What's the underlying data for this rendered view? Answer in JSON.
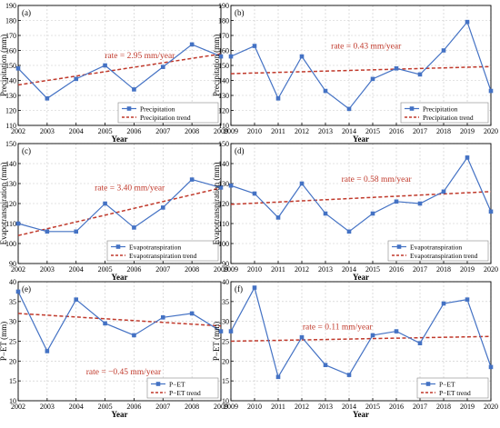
{
  "chart_data": [
    {
      "type": "line",
      "panel_label": "(a)",
      "xlabel": "Year",
      "ylabel": "Precipitation (mm)",
      "xlim": [
        2002,
        2009
      ],
      "ylim": [
        110,
        190
      ],
      "xticks": [
        "2002",
        "2003",
        "2004",
        "2005",
        "2006",
        "2007",
        "2008",
        "2009"
      ],
      "yticks": [
        "110",
        "120",
        "130",
        "140",
        "150",
        "160",
        "170",
        "180",
        "190"
      ],
      "x": [
        2002,
        2003,
        2004,
        2005,
        2006,
        2007,
        2008,
        2009
      ],
      "series": [
        {
          "name": "Precipitation",
          "style": "solid-square",
          "values": [
            148,
            128,
            141,
            150,
            134,
            149,
            164,
            156
          ]
        },
        {
          "name": "Precipitation trend",
          "style": "dashed",
          "values": [
            137,
            139.95,
            142.9,
            145.85,
            148.8,
            151.75,
            154.7,
            157.65
          ]
        }
      ],
      "annotation": "rate = 2.95 mm/year",
      "legend_position": "bottom-right",
      "grid": true
    },
    {
      "type": "line",
      "panel_label": "(b)",
      "xlabel": "Year",
      "ylabel": "Precipitation (mm)",
      "xlim": [
        2009,
        2020
      ],
      "ylim": [
        110,
        190
      ],
      "xticks": [
        "2009",
        "2010",
        "2011",
        "2012",
        "2013",
        "2014",
        "2015",
        "2016",
        "2017",
        "2018",
        "2019",
        "2020"
      ],
      "yticks": [
        "110",
        "120",
        "130",
        "140",
        "150",
        "160",
        "170",
        "180",
        "190"
      ],
      "x": [
        2009,
        2010,
        2011,
        2012,
        2013,
        2014,
        2015,
        2016,
        2017,
        2018,
        2019,
        2020
      ],
      "series": [
        {
          "name": "Precipitation",
          "style": "solid-square",
          "values": [
            156,
            163,
            128,
            156,
            133,
            121,
            141,
            148,
            144,
            160,
            179,
            133
          ]
        },
        {
          "name": "Precipitation trend",
          "style": "dashed",
          "values": [
            144.5,
            144.93,
            145.36,
            145.79,
            146.22,
            146.65,
            147.08,
            147.51,
            147.94,
            148.37,
            148.8,
            149.23
          ]
        }
      ],
      "annotation": "rate = 0.43 mm/year",
      "legend_position": "bottom-right",
      "grid": true
    },
    {
      "type": "line",
      "panel_label": "(c)",
      "xlabel": "Year",
      "ylabel": "Evapotranspiration (mm)",
      "xlim": [
        2002,
        2009
      ],
      "ylim": [
        90,
        150
      ],
      "xticks": [
        "2002",
        "2003",
        "2004",
        "2005",
        "2006",
        "2007",
        "2008",
        "2009"
      ],
      "yticks": [
        "90",
        "100",
        "110",
        "120",
        "130",
        "140",
        "150"
      ],
      "x": [
        2002,
        2003,
        2004,
        2005,
        2006,
        2007,
        2008,
        2009
      ],
      "series": [
        {
          "name": "Evapotranspiration",
          "style": "solid-square",
          "values": [
            110,
            106,
            106,
            120,
            108,
            118,
            132,
            128
          ]
        },
        {
          "name": "Evapotranspiration trend",
          "style": "dashed",
          "values": [
            104,
            107.4,
            110.8,
            114.2,
            117.6,
            121,
            124.4,
            127.8
          ]
        }
      ],
      "annotation": "rate = 3.40 mm/year",
      "legend_position": "bottom-right",
      "grid": true
    },
    {
      "type": "line",
      "panel_label": "(d)",
      "xlabel": "Year",
      "ylabel": "Evapotranspiration (mm)",
      "xlim": [
        2009,
        2020
      ],
      "ylim": [
        90,
        150
      ],
      "xticks": [
        "2009",
        "2010",
        "2011",
        "2012",
        "2013",
        "2014",
        "2015",
        "2016",
        "2017",
        "2018",
        "2019",
        "2020"
      ],
      "yticks": [
        "90",
        "100",
        "110",
        "120",
        "130",
        "140",
        "150"
      ],
      "x": [
        2009,
        2010,
        2011,
        2012,
        2013,
        2014,
        2015,
        2016,
        2017,
        2018,
        2019,
        2020
      ],
      "series": [
        {
          "name": "Evapotranspiration",
          "style": "solid-square",
          "values": [
            129,
            125,
            113,
            130,
            115,
            106,
            115,
            121,
            120,
            126,
            143,
            116
          ]
        },
        {
          "name": "Evapotranspiration trend",
          "style": "dashed",
          "values": [
            119.6,
            120.18,
            120.76,
            121.34,
            121.92,
            122.5,
            123.08,
            123.66,
            124.24,
            124.82,
            125.4,
            125.98
          ]
        }
      ],
      "annotation": "rate = 0.58 mm/year",
      "legend_position": "bottom-right",
      "grid": true
    },
    {
      "type": "line",
      "panel_label": "(e)",
      "xlabel": "Year",
      "ylabel": "P−ET (mm)",
      "xlim": [
        2002,
        2009
      ],
      "ylim": [
        10,
        40
      ],
      "xticks": [
        "2002",
        "2003",
        "2004",
        "2005",
        "2006",
        "2007",
        "2008",
        "2009"
      ],
      "yticks": [
        "10",
        "15",
        "20",
        "25",
        "30",
        "35",
        "40"
      ],
      "x": [
        2002,
        2003,
        2004,
        2005,
        2006,
        2007,
        2008,
        2009
      ],
      "series": [
        {
          "name": "P−ET",
          "style": "solid-square",
          "values": [
            37.5,
            22.5,
            35.5,
            29.5,
            26.5,
            31,
            32,
            27.5
          ]
        },
        {
          "name": "P−ET trend",
          "style": "dashed",
          "values": [
            32,
            31.55,
            31.1,
            30.65,
            30.2,
            29.75,
            29.3,
            28.85
          ]
        }
      ],
      "annotation": "rate = −0.45 mm/year",
      "legend_position": "bottom-right",
      "grid": true
    },
    {
      "type": "line",
      "panel_label": "(f)",
      "xlabel": "Year",
      "ylabel": "P−ET (mm)",
      "xlim": [
        2009,
        2020
      ],
      "ylim": [
        10,
        40
      ],
      "xticks": [
        "2009",
        "2010",
        "2011",
        "2012",
        "2013",
        "2014",
        "2015",
        "2016",
        "2017",
        "2018",
        "2019",
        "2020"
      ],
      "yticks": [
        "10",
        "15",
        "20",
        "25",
        "30",
        "35",
        "40"
      ],
      "x": [
        2009,
        2010,
        2011,
        2012,
        2013,
        2014,
        2015,
        2016,
        2017,
        2018,
        2019,
        2020
      ],
      "series": [
        {
          "name": "P−ET",
          "style": "solid-square",
          "values": [
            27.5,
            38.5,
            16,
            26,
            19,
            16.5,
            26.5,
            27.5,
            24.5,
            34.5,
            35.5,
            18.5
          ]
        },
        {
          "name": "P−ET trend",
          "style": "dashed",
          "values": [
            25,
            25.11,
            25.22,
            25.33,
            25.44,
            25.55,
            25.66,
            25.77,
            25.88,
            25.99,
            26.1,
            26.21
          ]
        }
      ],
      "annotation": "rate = 0.11 mm/year",
      "legend_position": "bottom-right",
      "grid": true
    }
  ],
  "colors": {
    "series": "#4472C4",
    "trend": "#C0392B",
    "annotation": "#C0392B",
    "grid": "#C8C8C8",
    "axis": "#000000"
  }
}
